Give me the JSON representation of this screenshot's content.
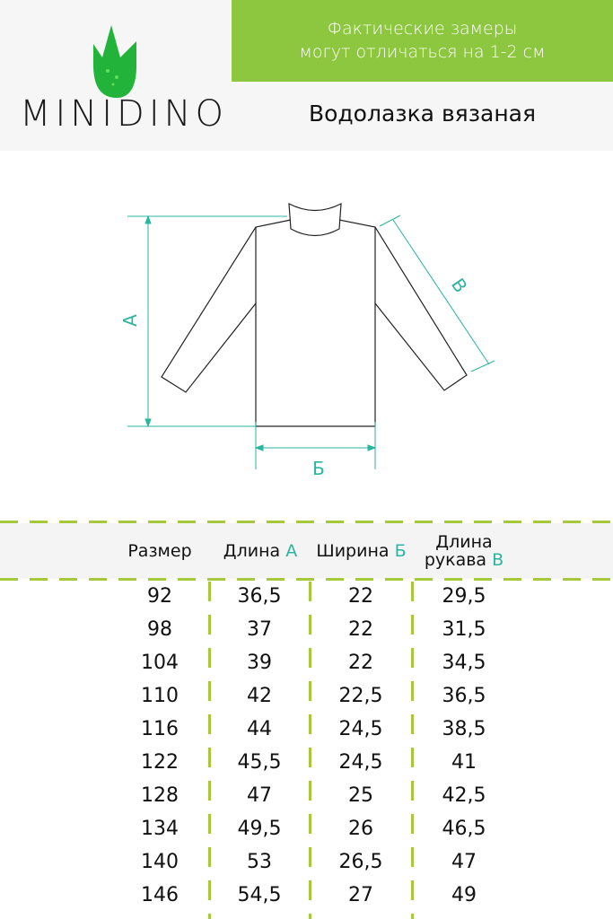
{
  "header": {
    "brand": "MINIDINO",
    "notice_line1": "Фактические замеры",
    "notice_line2": "могут отличаться на 1-2 см",
    "product": "Водолазка вязаная"
  },
  "diagram": {
    "label_a": "А",
    "label_b": "Б",
    "label_v": "В"
  },
  "colors": {
    "banner": "#8dc63f",
    "leaf": "#22b43a",
    "accent": "#2bb5a0",
    "dash": "#a5c93a"
  },
  "table": {
    "headers": [
      {
        "text": "Размер",
        "mark": ""
      },
      {
        "text": "Длина",
        "mark": "А"
      },
      {
        "text": "Ширина",
        "mark": "Б"
      },
      {
        "text1": "Длина",
        "text": "рукава",
        "mark": "В"
      }
    ],
    "rows": [
      [
        "92",
        "36,5",
        "22",
        "29,5"
      ],
      [
        "98",
        "37",
        "22",
        "31,5"
      ],
      [
        "104",
        "39",
        "22",
        "34,5"
      ],
      [
        "110",
        "42",
        "22,5",
        "36,5"
      ],
      [
        "116",
        "44",
        "24,5",
        "38,5"
      ],
      [
        "122",
        "45,5",
        "24,5",
        "41"
      ],
      [
        "128",
        "47",
        "25",
        "42,5"
      ],
      [
        "134",
        "49,5",
        "26",
        "46,5"
      ],
      [
        "140",
        "53",
        "26,5",
        "47"
      ],
      [
        "146",
        "54,5",
        "27",
        "49"
      ]
    ]
  }
}
